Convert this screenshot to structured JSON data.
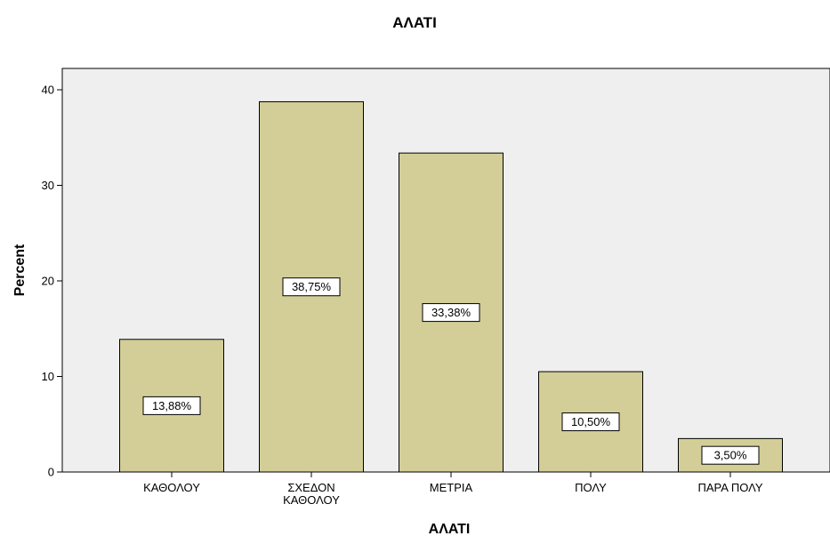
{
  "chart_data": {
    "type": "bar",
    "title": "ΑΛΑΤΙ",
    "xlabel": "ΑΛΑΤΙ",
    "ylabel": "Percent",
    "categories": [
      [
        "ΚΑΘΟΛΟΥ"
      ],
      [
        "ΣΧΕΔΟΝ",
        "ΚΑΘΟΛΟΥ"
      ],
      [
        "ΜΕΤΡΙΑ"
      ],
      [
        "ΠΟΛΥ"
      ],
      [
        "ΠΑΡΑ ΠΟΛΥ"
      ]
    ],
    "values": [
      13.88,
      38.75,
      33.38,
      10.5,
      3.5
    ],
    "data_labels": [
      "13,88%",
      "38,75%",
      "33,38%",
      "10,50%",
      "3,50%"
    ],
    "ylim": [
      0,
      40
    ],
    "yticks": [
      0,
      10,
      20,
      30,
      40
    ],
    "ytick_labels": [
      "0",
      "10",
      "20",
      "30",
      "40"
    ],
    "grid": false,
    "legend": "none",
    "colors": {
      "bar_fill": "#D3CE97",
      "bar_stroke": "#000000",
      "plot_background": "#EFEFEF",
      "label_box": "#FFFFFF"
    }
  }
}
